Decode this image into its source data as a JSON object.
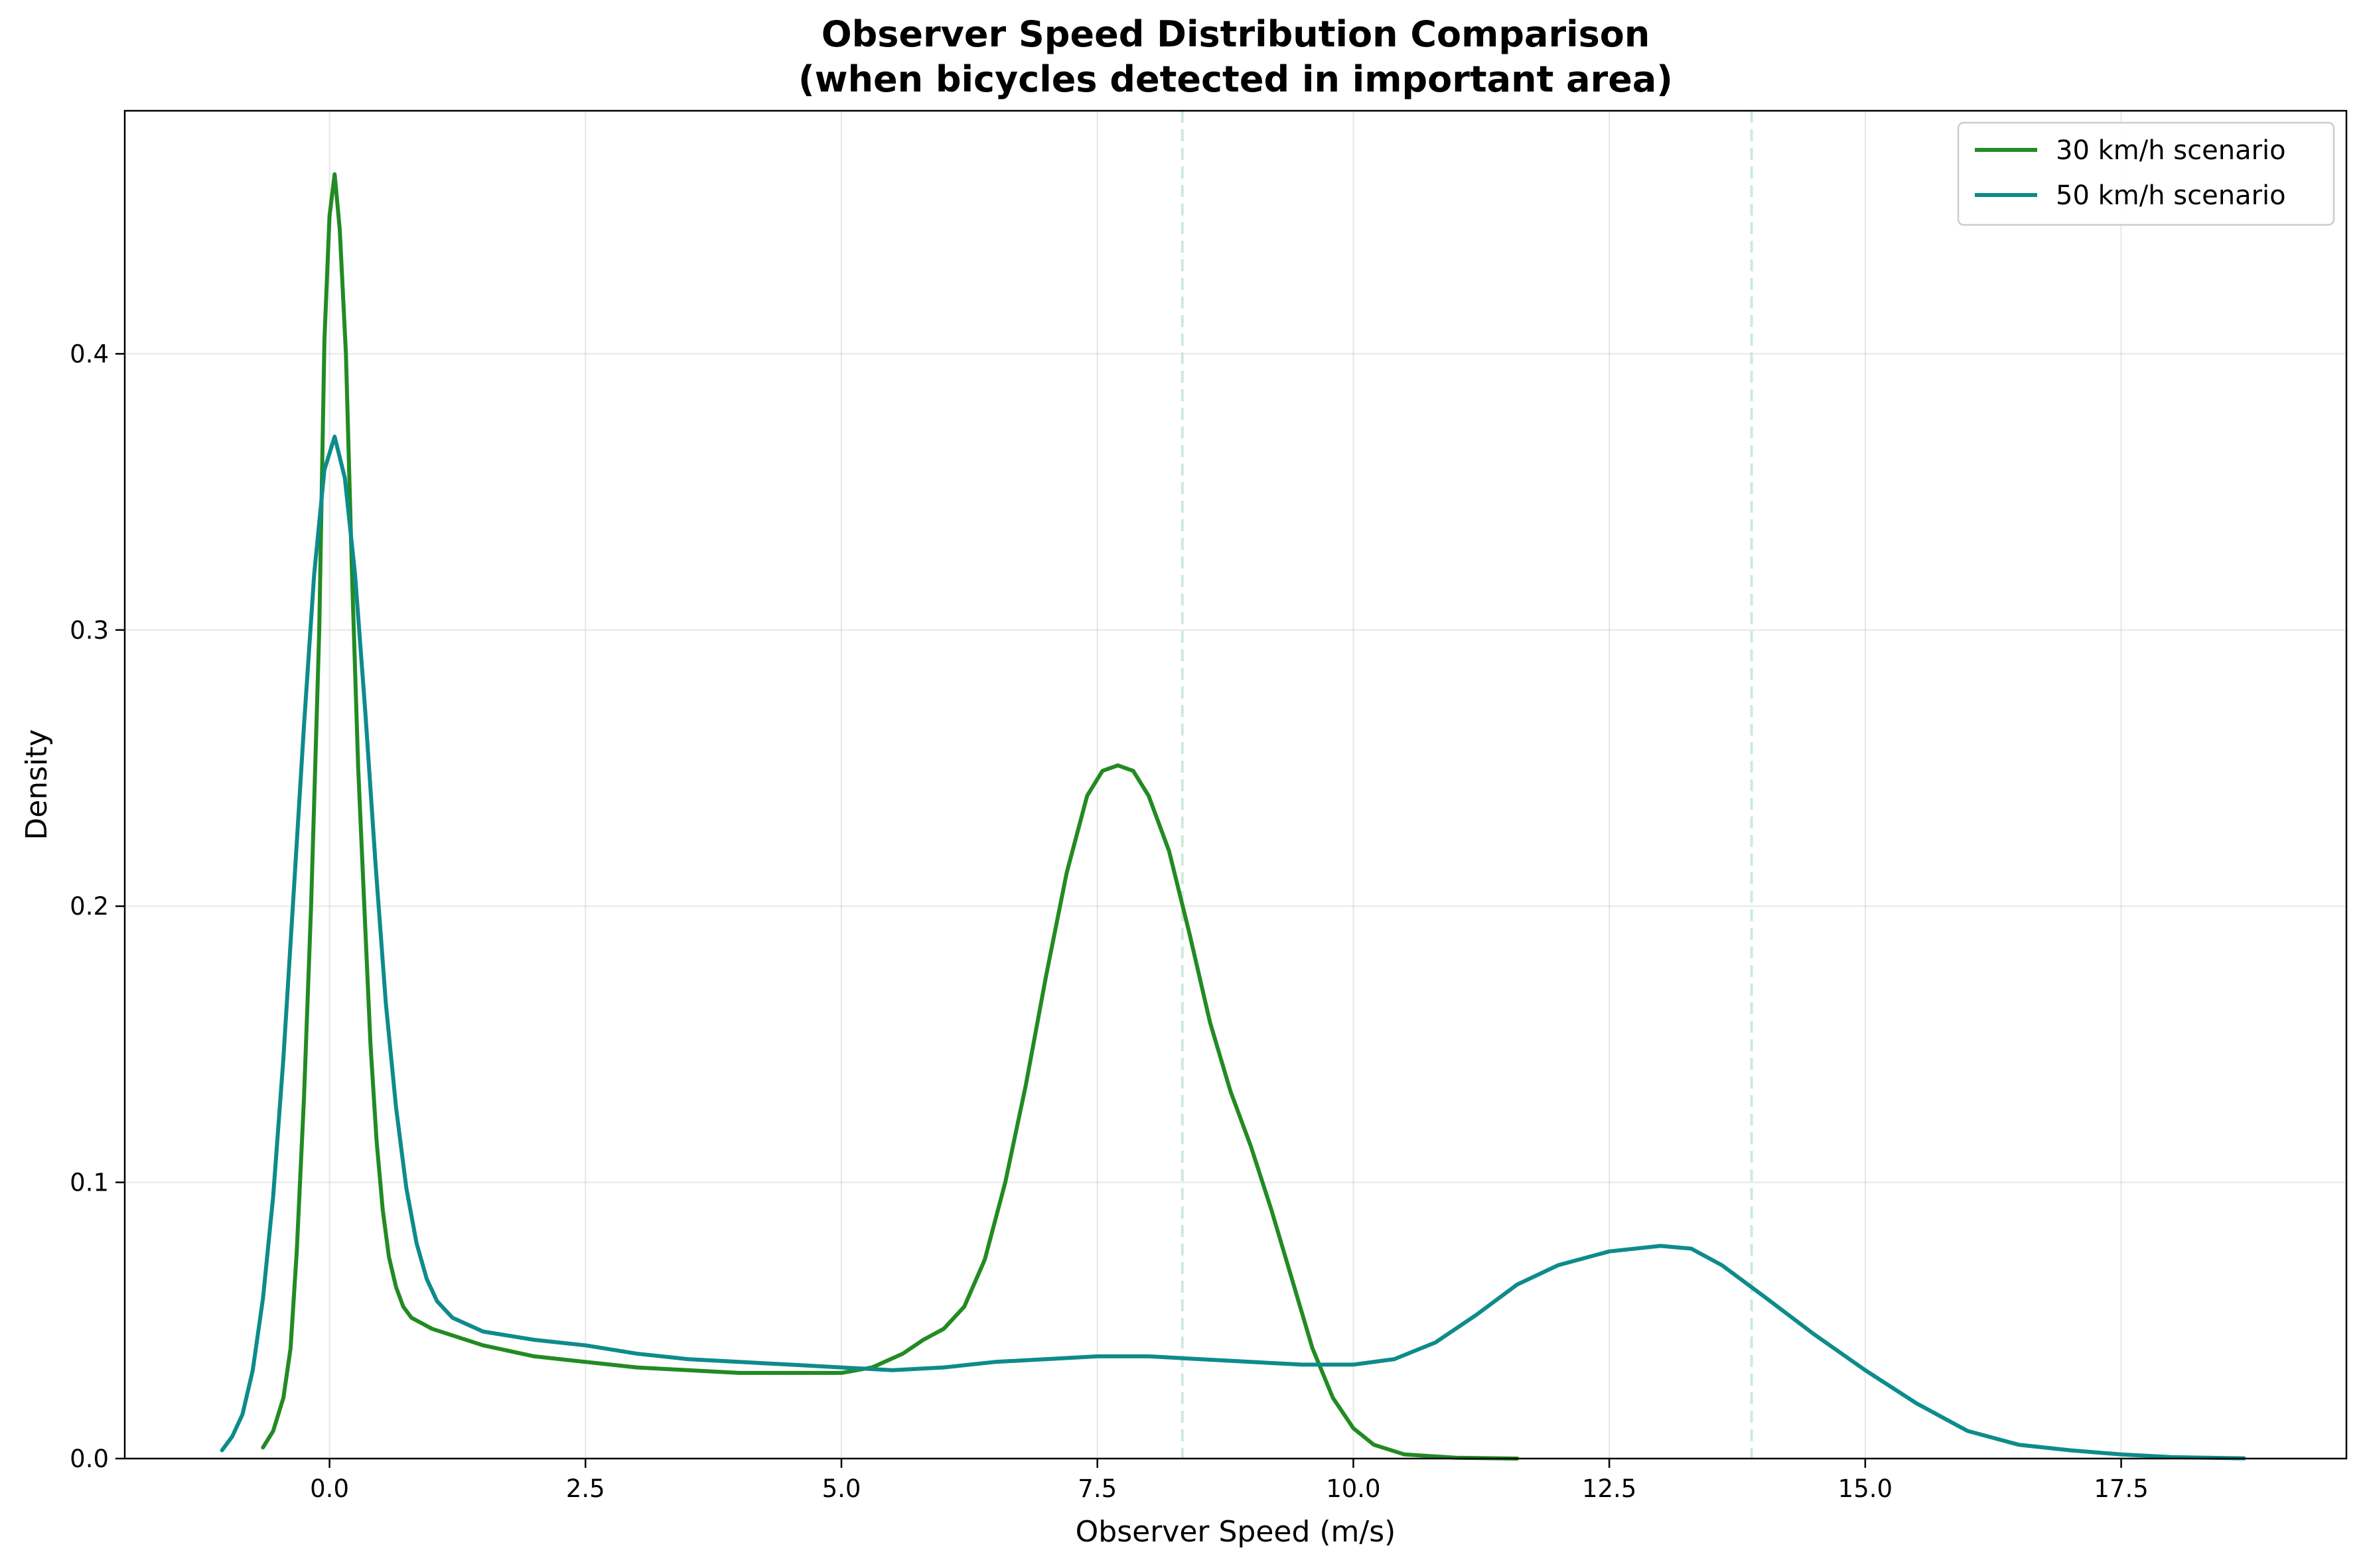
{
  "chart_data": {
    "type": "line",
    "title": "Observer Speed Distribution Comparison",
    "subtitle": "(when bicycles detected in important area)",
    "xlabel": "Observer Speed (m/s)",
    "ylabel": "Density",
    "xlim": [
      -2.0,
      19.7
    ],
    "ylim": [
      0,
      0.488
    ],
    "xticks": [
      0.0,
      2.5,
      5.0,
      7.5,
      10.0,
      12.5,
      15.0,
      17.5
    ],
    "xtick_labels": [
      "0.0",
      "2.5",
      "5.0",
      "7.5",
      "10.0",
      "12.5",
      "15.0",
      "17.5"
    ],
    "yticks": [
      0.0,
      0.1,
      0.2,
      0.3,
      0.4
    ],
    "ytick_labels": [
      "0.0",
      "0.1",
      "0.2",
      "0.3",
      "0.4"
    ],
    "grid": true,
    "legend_position": "top-right",
    "reference_lines_x": [
      8.33,
      13.89
    ],
    "reference_line_color": "#cdeadb",
    "series": [
      {
        "name": "30 km/h scenario",
        "color": "#228b22",
        "points": [
          [
            -0.65,
            0.004
          ],
          [
            -0.55,
            0.01
          ],
          [
            -0.45,
            0.022
          ],
          [
            -0.38,
            0.04
          ],
          [
            -0.32,
            0.075
          ],
          [
            -0.25,
            0.13
          ],
          [
            -0.18,
            0.2
          ],
          [
            -0.1,
            0.3
          ],
          [
            -0.05,
            0.405
          ],
          [
            0.0,
            0.45
          ],
          [
            0.05,
            0.465
          ],
          [
            0.1,
            0.445
          ],
          [
            0.16,
            0.4
          ],
          [
            0.22,
            0.32
          ],
          [
            0.28,
            0.25
          ],
          [
            0.34,
            0.2
          ],
          [
            0.4,
            0.15
          ],
          [
            0.46,
            0.115
          ],
          [
            0.52,
            0.09
          ],
          [
            0.58,
            0.073
          ],
          [
            0.65,
            0.062
          ],
          [
            0.72,
            0.055
          ],
          [
            0.8,
            0.051
          ],
          [
            1.0,
            0.047
          ],
          [
            1.5,
            0.041
          ],
          [
            2.0,
            0.037
          ],
          [
            2.5,
            0.035
          ],
          [
            3.0,
            0.033
          ],
          [
            3.5,
            0.032
          ],
          [
            4.0,
            0.031
          ],
          [
            4.5,
            0.031
          ],
          [
            5.0,
            0.031
          ],
          [
            5.3,
            0.033
          ],
          [
            5.6,
            0.038
          ],
          [
            5.8,
            0.043
          ],
          [
            6.0,
            0.047
          ],
          [
            6.2,
            0.055
          ],
          [
            6.4,
            0.072
          ],
          [
            6.6,
            0.1
          ],
          [
            6.8,
            0.135
          ],
          [
            7.0,
            0.175
          ],
          [
            7.2,
            0.212
          ],
          [
            7.4,
            0.24
          ],
          [
            7.55,
            0.249
          ],
          [
            7.7,
            0.251
          ],
          [
            7.85,
            0.249
          ],
          [
            8.0,
            0.24
          ],
          [
            8.2,
            0.22
          ],
          [
            8.4,
            0.19
          ],
          [
            8.6,
            0.158
          ],
          [
            8.8,
            0.133
          ],
          [
            9.0,
            0.113
          ],
          [
            9.2,
            0.09
          ],
          [
            9.4,
            0.065
          ],
          [
            9.6,
            0.04
          ],
          [
            9.8,
            0.022
          ],
          [
            10.0,
            0.011
          ],
          [
            10.2,
            0.005
          ],
          [
            10.5,
            0.0015
          ],
          [
            11.0,
            0.0003
          ],
          [
            11.6,
            0.0
          ]
        ]
      },
      {
        "name": "50 km/h scenario",
        "color": "#0e8b8b",
        "points": [
          [
            -1.05,
            0.003
          ],
          [
            -0.95,
            0.008
          ],
          [
            -0.85,
            0.016
          ],
          [
            -0.75,
            0.032
          ],
          [
            -0.65,
            0.058
          ],
          [
            -0.55,
            0.095
          ],
          [
            -0.45,
            0.145
          ],
          [
            -0.35,
            0.205
          ],
          [
            -0.25,
            0.265
          ],
          [
            -0.15,
            0.32
          ],
          [
            -0.05,
            0.358
          ],
          [
            0.05,
            0.37
          ],
          [
            0.15,
            0.355
          ],
          [
            0.25,
            0.32
          ],
          [
            0.35,
            0.27
          ],
          [
            0.45,
            0.215
          ],
          [
            0.55,
            0.165
          ],
          [
            0.65,
            0.127
          ],
          [
            0.75,
            0.098
          ],
          [
            0.85,
            0.078
          ],
          [
            0.95,
            0.065
          ],
          [
            1.05,
            0.057
          ],
          [
            1.2,
            0.051
          ],
          [
            1.5,
            0.046
          ],
          [
            2.0,
            0.043
          ],
          [
            2.5,
            0.041
          ],
          [
            3.0,
            0.038
          ],
          [
            3.5,
            0.036
          ],
          [
            4.0,
            0.035
          ],
          [
            4.5,
            0.034
          ],
          [
            5.0,
            0.033
          ],
          [
            5.5,
            0.032
          ],
          [
            6.0,
            0.033
          ],
          [
            6.5,
            0.035
          ],
          [
            7.0,
            0.036
          ],
          [
            7.5,
            0.037
          ],
          [
            8.0,
            0.037
          ],
          [
            8.5,
            0.036
          ],
          [
            9.0,
            0.035
          ],
          [
            9.5,
            0.034
          ],
          [
            10.0,
            0.034
          ],
          [
            10.4,
            0.036
          ],
          [
            10.8,
            0.042
          ],
          [
            11.2,
            0.052
          ],
          [
            11.6,
            0.063
          ],
          [
            12.0,
            0.07
          ],
          [
            12.5,
            0.075
          ],
          [
            13.0,
            0.077
          ],
          [
            13.3,
            0.076
          ],
          [
            13.6,
            0.07
          ],
          [
            14.0,
            0.059
          ],
          [
            14.5,
            0.045
          ],
          [
            15.0,
            0.032
          ],
          [
            15.5,
            0.02
          ],
          [
            16.0,
            0.01
          ],
          [
            16.5,
            0.005
          ],
          [
            17.0,
            0.003
          ],
          [
            17.5,
            0.0015
          ],
          [
            18.0,
            0.0005
          ],
          [
            18.7,
            0.0001
          ]
        ]
      }
    ]
  }
}
